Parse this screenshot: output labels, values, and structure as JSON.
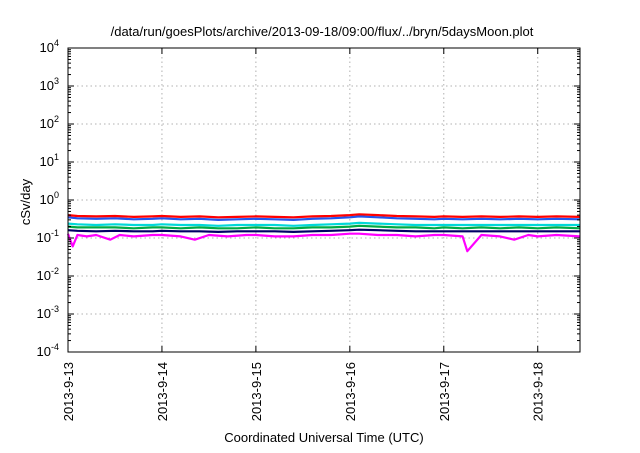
{
  "chart_data": {
    "type": "line",
    "title": "/data/run/goesPlots/archive/2013-09-18/09:00/flux/../bryn/5daysMoon.plot",
    "xlabel": "Coordinated Universal Time (UTC)",
    "ylabel": "cSv/day",
    "yscale": "log",
    "ylim": [
      0.0001,
      10000
    ],
    "xlim": [
      0,
      5.45
    ],
    "grid": true,
    "legend": "none",
    "x_tick_labels": [
      "2013-9-13",
      "2013-9-14",
      "2013-9-15",
      "2013-9-16",
      "2013-9-17",
      "2013-9-18"
    ],
    "x_tick_positions": [
      0,
      1,
      2,
      3,
      4,
      5
    ],
    "y_ticks": [
      {
        "value": 0.0001,
        "base": "10",
        "exp": "-4"
      },
      {
        "value": 0.001,
        "base": "10",
        "exp": "-3"
      },
      {
        "value": 0.01,
        "base": "10",
        "exp": "-2"
      },
      {
        "value": 0.1,
        "base": "10",
        "exp": "-1"
      },
      {
        "value": 1,
        "base": "10",
        "exp": "0"
      },
      {
        "value": 10,
        "base": "10",
        "exp": "1"
      },
      {
        "value": 100,
        "base": "10",
        "exp": "2"
      },
      {
        "value": 1000,
        "base": "10",
        "exp": "3"
      },
      {
        "value": 10000,
        "base": "10",
        "exp": "4"
      }
    ],
    "series_note_x_unit": "days since 2013-9-13 00:00 UTC",
    "series": [
      {
        "color": "#ff0000",
        "x": [
          0,
          0.1,
          0.3,
          0.5,
          0.7,
          0.9,
          1.0,
          1.2,
          1.4,
          1.6,
          1.8,
          2.0,
          2.2,
          2.4,
          2.6,
          2.8,
          3.0,
          3.1,
          3.3,
          3.5,
          3.7,
          3.9,
          4.0,
          4.2,
          4.4,
          4.6,
          4.8,
          5.0,
          5.2,
          5.45
        ],
        "values": [
          0.4,
          0.38,
          0.37,
          0.38,
          0.36,
          0.37,
          0.38,
          0.36,
          0.37,
          0.35,
          0.36,
          0.37,
          0.36,
          0.35,
          0.37,
          0.38,
          0.4,
          0.42,
          0.4,
          0.38,
          0.37,
          0.36,
          0.37,
          0.36,
          0.37,
          0.36,
          0.37,
          0.36,
          0.37,
          0.36
        ]
      },
      {
        "color": "#2255ee",
        "x": [
          0,
          0.1,
          0.3,
          0.5,
          0.7,
          0.9,
          1.0,
          1.2,
          1.4,
          1.6,
          1.8,
          2.0,
          2.2,
          2.4,
          2.6,
          2.8,
          3.0,
          3.1,
          3.3,
          3.5,
          3.7,
          3.9,
          4.0,
          4.2,
          4.4,
          4.6,
          4.8,
          5.0,
          5.2,
          5.45
        ],
        "values": [
          0.35,
          0.33,
          0.32,
          0.33,
          0.31,
          0.32,
          0.33,
          0.31,
          0.32,
          0.3,
          0.31,
          0.32,
          0.31,
          0.3,
          0.32,
          0.33,
          0.35,
          0.37,
          0.35,
          0.33,
          0.32,
          0.31,
          0.32,
          0.31,
          0.32,
          0.31,
          0.32,
          0.31,
          0.32,
          0.31
        ]
      },
      {
        "color": "#00d8d8",
        "x": [
          0,
          0.1,
          0.3,
          0.5,
          0.7,
          0.9,
          1.0,
          1.2,
          1.4,
          1.6,
          1.8,
          2.0,
          2.2,
          2.4,
          2.6,
          2.8,
          3.0,
          3.1,
          3.3,
          3.5,
          3.7,
          3.9,
          4.0,
          4.2,
          4.4,
          4.6,
          4.8,
          5.0,
          5.2,
          5.45
        ],
        "values": [
          0.24,
          0.23,
          0.22,
          0.23,
          0.22,
          0.22,
          0.23,
          0.22,
          0.22,
          0.21,
          0.22,
          0.22,
          0.22,
          0.21,
          0.22,
          0.23,
          0.24,
          0.25,
          0.24,
          0.23,
          0.22,
          0.22,
          0.22,
          0.22,
          0.22,
          0.22,
          0.22,
          0.22,
          0.22,
          0.22
        ]
      },
      {
        "color": "#00aa44",
        "x": [
          0,
          0.1,
          0.3,
          0.5,
          0.7,
          0.9,
          1.0,
          1.2,
          1.4,
          1.6,
          1.8,
          2.0,
          2.2,
          2.4,
          2.6,
          2.8,
          3.0,
          3.1,
          3.3,
          3.5,
          3.7,
          3.9,
          4.0,
          4.2,
          4.4,
          4.6,
          4.8,
          5.0,
          5.2,
          5.45
        ],
        "values": [
          0.2,
          0.19,
          0.19,
          0.19,
          0.18,
          0.19,
          0.19,
          0.18,
          0.19,
          0.18,
          0.18,
          0.19,
          0.18,
          0.18,
          0.19,
          0.19,
          0.2,
          0.21,
          0.2,
          0.19,
          0.19,
          0.18,
          0.19,
          0.18,
          0.19,
          0.18,
          0.19,
          0.18,
          0.19,
          0.18
        ]
      },
      {
        "color": "#000066",
        "x": [
          0,
          0.1,
          0.3,
          0.5,
          0.7,
          0.9,
          1.0,
          1.2,
          1.4,
          1.6,
          1.8,
          2.0,
          2.2,
          2.4,
          2.6,
          2.8,
          3.0,
          3.1,
          3.3,
          3.5,
          3.7,
          3.9,
          4.0,
          4.2,
          4.4,
          4.6,
          4.8,
          5.0,
          5.2,
          5.45
        ],
        "values": [
          0.16,
          0.155,
          0.15,
          0.155,
          0.15,
          0.15,
          0.155,
          0.15,
          0.15,
          0.145,
          0.15,
          0.15,
          0.15,
          0.145,
          0.15,
          0.155,
          0.16,
          0.165,
          0.16,
          0.155,
          0.15,
          0.15,
          0.15,
          0.15,
          0.15,
          0.15,
          0.15,
          0.15,
          0.15,
          0.15
        ]
      },
      {
        "color": "#ff00ff",
        "x": [
          0,
          0.05,
          0.1,
          0.2,
          0.3,
          0.45,
          0.55,
          0.7,
          0.9,
          1.0,
          1.2,
          1.35,
          1.5,
          1.7,
          1.9,
          2.0,
          2.2,
          2.4,
          2.6,
          2.8,
          3.0,
          3.1,
          3.3,
          3.5,
          3.7,
          3.9,
          4.0,
          4.2,
          4.25,
          4.4,
          4.6,
          4.75,
          4.9,
          5.0,
          5.2,
          5.45
        ],
        "values": [
          0.13,
          0.06,
          0.12,
          0.11,
          0.12,
          0.09,
          0.12,
          0.11,
          0.12,
          0.12,
          0.11,
          0.09,
          0.12,
          0.11,
          0.12,
          0.12,
          0.11,
          0.11,
          0.12,
          0.12,
          0.13,
          0.13,
          0.12,
          0.12,
          0.11,
          0.12,
          0.12,
          0.11,
          0.045,
          0.12,
          0.11,
          0.09,
          0.12,
          0.11,
          0.12,
          0.11
        ]
      }
    ]
  }
}
